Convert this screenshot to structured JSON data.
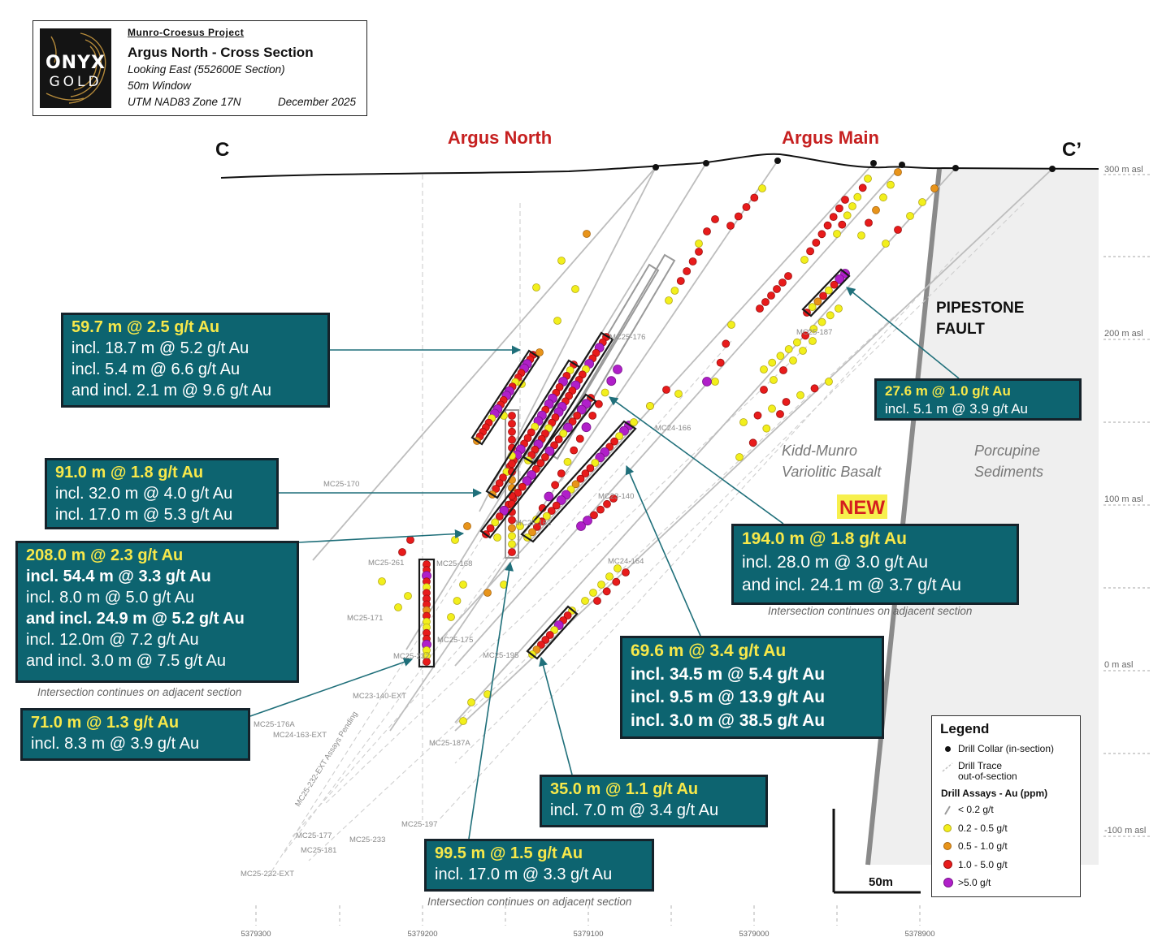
{
  "title_box": {
    "logo_line1": "ONYX",
    "logo_line2": "GOLD",
    "project": "Munro-Croesus Project",
    "title": "Argus North - Cross Section",
    "line1": "Looking East (552600E Section)",
    "line2": "50m Window",
    "line3": "UTM NAD83 Zone 17N",
    "date": "December 2025"
  },
  "section": {
    "left_label": "C",
    "right_label": "C’"
  },
  "zones": {
    "argus_north": "Argus North",
    "argus_main": "Argus Main"
  },
  "new_badge": "NEW",
  "fault_label": [
    "PIPESTONE",
    "FAULT"
  ],
  "rock_units": {
    "basalt": [
      "Kidd-Munro",
      "Variolitic Basalt"
    ],
    "sediments": [
      "Porcupine",
      "Sediments"
    ]
  },
  "elevation_labels": [
    "300 m asl",
    "200 m asl",
    "100 m asl",
    "0 m asl",
    "-100 m asl"
  ],
  "northing_labels": [
    "5379300",
    "5379200",
    "5379100",
    "5379000",
    "5378900"
  ],
  "hole_labels": [
    "MC25-176",
    "MC25-187",
    "MC24-166",
    "MC25-170",
    "MC23-140",
    "MC25-261",
    "MC25-168",
    "MC25-163",
    "MC24-164",
    "MC25-171",
    "MC25-175",
    "MC25-232",
    "MC25-195",
    "MC23-140-EXT",
    "MC25-176A",
    "MC24-163-EXT",
    "MC25-187A",
    "MC25-232-EXT Assays Pending",
    "MC25-197",
    "MC25-177",
    "MC25-233",
    "MC25-181",
    "MC25-232-EXT"
  ],
  "callouts": [
    {
      "id": "c1",
      "lines": [
        "59.7 m @ 2.5 g/t Au",
        "incl. 18.7 m @ 5.2 g/t Au",
        "incl. 5.4 m @ 6.6 g/t Au",
        "and incl. 2.1 m @ 9.6 g/t Au"
      ]
    },
    {
      "id": "c2",
      "lines": [
        "91.0 m @ 1.8 g/t Au",
        "incl. 32.0 m @ 4.0 g/t Au",
        "incl. 17.0 m @ 5.3 g/t Au"
      ]
    },
    {
      "id": "c3",
      "lines": [
        "208.0 m @ 2.3 g/t Au",
        "incl. 54.4 m @ 3.3 g/t Au",
        "incl. 8.0 m @ 5.0 g/t Au",
        "and incl. 24.9 m @ 5.2 g/t Au",
        "incl. 12.0m @ 7.2 g/t Au",
        "and incl. 3.0 m @ 7.5 g/t Au"
      ]
    },
    {
      "id": "c4",
      "lines": [
        "71.0 m @ 1.3 g/t Au",
        "incl. 8.3 m @ 3.9 g/t Au"
      ]
    },
    {
      "id": "c5",
      "lines": [
        "99.5 m @ 1.5 g/t Au",
        "incl. 17.0 m @ 3.3 g/t Au"
      ]
    },
    {
      "id": "c6",
      "lines": [
        "35.0 m @ 1.1 g/t Au",
        "incl. 7.0 m @ 3.4 g/t Au"
      ]
    },
    {
      "id": "c7",
      "lines": [
        "69.6 m @ 3.4 g/t Au",
        "incl. 34.5 m @ 5.4 g/t Au",
        "incl. 9.5 m @ 13.9 g/t Au",
        "incl. 3.0 m @ 38.5 g/t Au"
      ]
    },
    {
      "id": "c8",
      "lines": [
        "194.0 m @ 1.8 g/t Au",
        "incl. 28.0 m @ 3.0 g/t Au",
        "and incl. 24.1 m @ 3.7 g/t Au"
      ]
    },
    {
      "id": "c9",
      "lines": [
        "27.6 m @ 1.0 g/t Au",
        "incl. 5.1 m @ 3.9 g/t Au"
      ]
    }
  ],
  "notes": {
    "n1": "Intersection continues on adjacent section",
    "n2": "Intersection continues on adjacent section",
    "n3": "Intersection continues on adjacent section"
  },
  "scale_bar": "50m",
  "legend": {
    "title": "Legend",
    "collar": "Drill Collar (in-section)",
    "trace": [
      "Drill Trace",
      "out-of-section"
    ],
    "assays_title": "Drill Assays - Au (ppm)",
    "items": [
      {
        "label": "< 0.2 g/t",
        "color": "#9a9a9a"
      },
      {
        "label": "0.2 - 0.5 g/t",
        "color": "#f2ef1c"
      },
      {
        "label": "0.5 - 1.0 g/t",
        "color": "#e8941a"
      },
      {
        "label": "1.0 - 5.0 g/t",
        "color": "#e81b1b"
      },
      {
        "label": ">5.0 g/t",
        "color": "#b01fc9"
      }
    ]
  },
  "colors": {
    "callout_bg": "#0d6470",
    "callout_head": "#f7e84a",
    "zone_label": "#c62020",
    "sediments": "#eeeeee",
    "trace": "#c4c4c4",
    "arrow": "#1f6f7a"
  }
}
